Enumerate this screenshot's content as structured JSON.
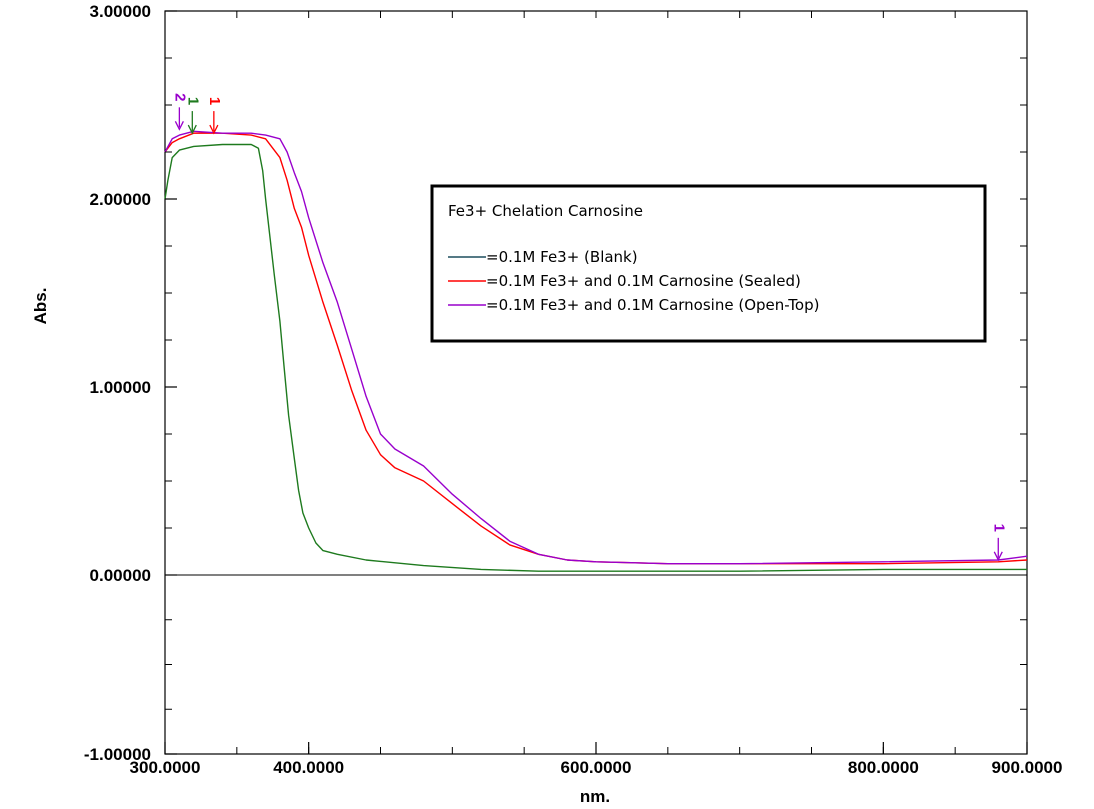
{
  "chart_data": {
    "type": "line",
    "title": "",
    "xlabel": "nm.",
    "ylabel": "Abs.",
    "xlim": [
      300,
      900
    ],
    "ylim": [
      -1,
      3
    ],
    "x_ticks": [
      {
        "value": 300,
        "label": "300.0000"
      },
      {
        "value": 400,
        "label": "400.0000"
      },
      {
        "value": 600,
        "label": "600.0000"
      },
      {
        "value": 800,
        "label": "800.0000"
      },
      {
        "value": 900,
        "label": "900.0000"
      }
    ],
    "y_ticks": [
      {
        "value": 3,
        "label": "3.00000"
      },
      {
        "value": 2,
        "label": "2.00000"
      },
      {
        "value": 1,
        "label": "1.00000"
      },
      {
        "value": 0,
        "label": "0.00000"
      },
      {
        "value": -1,
        "label": "-1.00000"
      }
    ],
    "grid": false,
    "legend": {
      "title": "Fe3+ Chelation Carnosine",
      "placement": "center-right",
      "entries": [
        {
          "label": "=0.1M Fe3+ (Blank)",
          "color": "#1d4f5f"
        },
        {
          "label": "=0.1M Fe3+ and 0.1M Carnosine (Sealed)",
          "color": "#ff0000"
        },
        {
          "label": "=0.1M Fe3+ and 0.1M Carnosine (Open-Top)",
          "color": "#9900cc"
        }
      ]
    },
    "series": [
      {
        "color": "#1e7a1e",
        "x": [
          300,
          302,
          305,
          310,
          320,
          340,
          360,
          365,
          368,
          370,
          373,
          376,
          380,
          383,
          386,
          390,
          393,
          396,
          400,
          405,
          410,
          420,
          440,
          480,
          520,
          560,
          600,
          700,
          800,
          900
        ],
        "y": [
          2.0,
          2.1,
          2.22,
          2.26,
          2.28,
          2.29,
          2.29,
          2.27,
          2.15,
          2.0,
          1.8,
          1.6,
          1.35,
          1.1,
          0.85,
          0.62,
          0.45,
          0.33,
          0.25,
          0.17,
          0.13,
          0.11,
          0.08,
          0.05,
          0.03,
          0.02,
          0.02,
          0.02,
          0.03,
          0.03
        ]
      },
      {
        "color": "#ff0000",
        "x": [
          300,
          305,
          310,
          320,
          340,
          360,
          370,
          380,
          385,
          390,
          395,
          400,
          410,
          420,
          430,
          440,
          450,
          460,
          480,
          500,
          520,
          540,
          560,
          580,
          600,
          650,
          700,
          800,
          880,
          900
        ],
        "y": [
          2.25,
          2.3,
          2.32,
          2.35,
          2.35,
          2.34,
          2.32,
          2.22,
          2.1,
          1.95,
          1.85,
          1.7,
          1.45,
          1.22,
          0.98,
          0.77,
          0.64,
          0.57,
          0.5,
          0.38,
          0.26,
          0.16,
          0.11,
          0.08,
          0.07,
          0.06,
          0.06,
          0.06,
          0.07,
          0.08
        ]
      },
      {
        "color": "#9900cc",
        "x": [
          300,
          305,
          310,
          320,
          340,
          360,
          370,
          380,
          385,
          390,
          395,
          400,
          410,
          420,
          430,
          440,
          450,
          460,
          480,
          500,
          520,
          540,
          560,
          580,
          600,
          650,
          700,
          800,
          880,
          900
        ],
        "y": [
          2.25,
          2.32,
          2.34,
          2.36,
          2.35,
          2.35,
          2.34,
          2.32,
          2.25,
          2.14,
          2.04,
          1.9,
          1.66,
          1.45,
          1.2,
          0.95,
          0.75,
          0.67,
          0.58,
          0.43,
          0.3,
          0.18,
          0.11,
          0.08,
          0.07,
          0.06,
          0.06,
          0.07,
          0.08,
          0.1
        ]
      }
    ],
    "markers": [
      {
        "label": "2",
        "x": 310,
        "y": 2.36,
        "color": "#9900cc"
      },
      {
        "label": "1",
        "x": 319,
        "y": 2.34,
        "color": "#1e7a1e"
      },
      {
        "label": "1",
        "x": 334,
        "y": 2.34,
        "color": "#ff0000"
      },
      {
        "label": "1",
        "x": 880,
        "y": 0.07,
        "color": "#9900cc"
      }
    ]
  }
}
